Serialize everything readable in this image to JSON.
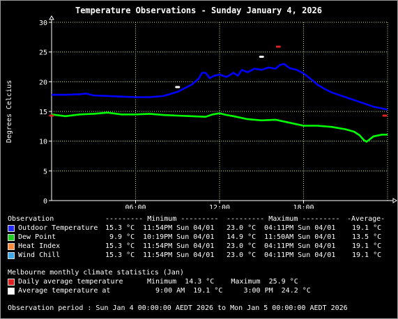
{
  "chart_data": {
    "type": "line",
    "title": "Temperature Observations - Sunday January 4, 2026",
    "ylabel": "Degrees Celcius",
    "xlabel": "",
    "xlim": [
      0,
      24
    ],
    "ylim": [
      0,
      30
    ],
    "yticks": [
      0,
      5,
      10,
      15,
      20,
      25,
      30
    ],
    "xticks": [
      {
        "x": 6,
        "label": "06:00"
      },
      {
        "x": 12,
        "label": "12:00"
      },
      {
        "x": 18,
        "label": "18:00"
      }
    ],
    "grid": true,
    "series": [
      {
        "name": "Outdoor Temperature",
        "color": "#0000ff",
        "points": [
          [
            0,
            17.8
          ],
          [
            1,
            17.8
          ],
          [
            2,
            17.9
          ],
          [
            2.5,
            18.0
          ],
          [
            3,
            17.7
          ],
          [
            4,
            17.6
          ],
          [
            5,
            17.5
          ],
          [
            6,
            17.4
          ],
          [
            7,
            17.4
          ],
          [
            8,
            17.6
          ],
          [
            9,
            18.3
          ],
          [
            10,
            19.5
          ],
          [
            10.5,
            20.5
          ],
          [
            10.75,
            21.5
          ],
          [
            11,
            21.5
          ],
          [
            11.3,
            20.6
          ],
          [
            11.6,
            21.0
          ],
          [
            12,
            21.2
          ],
          [
            12.5,
            20.8
          ],
          [
            13,
            21.5
          ],
          [
            13.3,
            21.0
          ],
          [
            13.6,
            22.0
          ],
          [
            14,
            21.6
          ],
          [
            14.5,
            22.2
          ],
          [
            15,
            22.0
          ],
          [
            15.5,
            22.4
          ],
          [
            16,
            22.2
          ],
          [
            16.3,
            22.8
          ],
          [
            16.6,
            23.0
          ],
          [
            17,
            22.3
          ],
          [
            17.5,
            22.0
          ],
          [
            18,
            21.4
          ],
          [
            18.5,
            20.5
          ],
          [
            19,
            19.5
          ],
          [
            19.5,
            18.8
          ],
          [
            20,
            18.2
          ],
          [
            21,
            17.4
          ],
          [
            22,
            16.6
          ],
          [
            23,
            15.8
          ],
          [
            24,
            15.3
          ]
        ]
      },
      {
        "name": "Dew Point",
        "color": "#00ff00",
        "points": [
          [
            0,
            14.5
          ],
          [
            1,
            14.2
          ],
          [
            2,
            14.5
          ],
          [
            3,
            14.6
          ],
          [
            4,
            14.8
          ],
          [
            5,
            14.5
          ],
          [
            6,
            14.5
          ],
          [
            7,
            14.6
          ],
          [
            8,
            14.4
          ],
          [
            9,
            14.3
          ],
          [
            10,
            14.2
          ],
          [
            11,
            14.1
          ],
          [
            11.5,
            14.5
          ],
          [
            12,
            14.7
          ],
          [
            12.5,
            14.4
          ],
          [
            13,
            14.2
          ],
          [
            14,
            13.7
          ],
          [
            15,
            13.5
          ],
          [
            16,
            13.6
          ],
          [
            17,
            13.1
          ],
          [
            18,
            12.6
          ],
          [
            19,
            12.6
          ],
          [
            20,
            12.4
          ],
          [
            21,
            12.0
          ],
          [
            21.6,
            11.6
          ],
          [
            22,
            11.0
          ],
          [
            22.3,
            10.2
          ],
          [
            22.5,
            9.9
          ],
          [
            23,
            10.8
          ],
          [
            23.6,
            11.1
          ],
          [
            24,
            11.1
          ]
        ]
      }
    ],
    "markers": [
      {
        "name": "Daily average temperature",
        "color": "#dd2222",
        "points": [
          [
            0,
            14.3
          ],
          [
            16.2,
            25.9
          ],
          [
            23.8,
            14.3
          ]
        ]
      },
      {
        "name": "Average temperature at",
        "color": "#ffffff",
        "points": [
          [
            9,
            19.1
          ],
          [
            15,
            24.2
          ]
        ]
      }
    ],
    "plot_bg": "#000000",
    "grid_color": "#c8e680",
    "axis_color": "#ffffff",
    "legend": {
      "header": "Observation",
      "col_min": "--------- Minimum ---------",
      "col_max": "--------- Maximum ---------",
      "col_avg": "-Average-",
      "rows": [
        {
          "label": "Outdoor Temperature",
          "color": "#2a2aff",
          "min_val": "15.3 °C",
          "min_time": "11:54PM Sun 04/01",
          "max_val": "23.0 °C",
          "max_time": "04:11PM Sun 04/01",
          "avg": "19.1 °C"
        },
        {
          "label": "Dew Point",
          "color": "#22cc22",
          "min_val": " 9.9 °C",
          "min_time": "10:19PM Sun 04/01",
          "max_val": "14.9 °C",
          "max_time": "11:50AM Sun 04/01",
          "avg": "13.5 °C"
        },
        {
          "label": "Heat Index",
          "color": "#ff8c3a",
          "min_val": "15.3 °C",
          "min_time": "11:54PM Sun 04/01",
          "max_val": "23.0 °C",
          "max_time": "04:11PM Sun 04/01",
          "avg": "19.1 °C"
        },
        {
          "label": "Wind Chill",
          "color": "#40a8e8",
          "min_val": "15.3 °C",
          "min_time": "11:54PM Sun 04/01",
          "max_val": "23.0 °C",
          "max_time": "04:11PM Sun 04/01",
          "avg": "19.1 °C"
        }
      ]
    },
    "climate": {
      "heading": "Melbourne monthly climate statistics (Jan)",
      "rows": [
        {
          "label": "Daily average temperature",
          "color": "#dd2222",
          "text": "Minimum  14.3 °C    Maximum  25.9 °C"
        },
        {
          "label": "Average temperature at",
          "color": "#ffffff",
          "text": "  9:00 AM  19.1 °C     3:00 PM  24.2 °C"
        }
      ]
    },
    "footer": "Observation period : Sun Jan 4 00:00:00 AEDT 2026 to Mon Jan 5 00:00:00 AEDT 2026"
  }
}
